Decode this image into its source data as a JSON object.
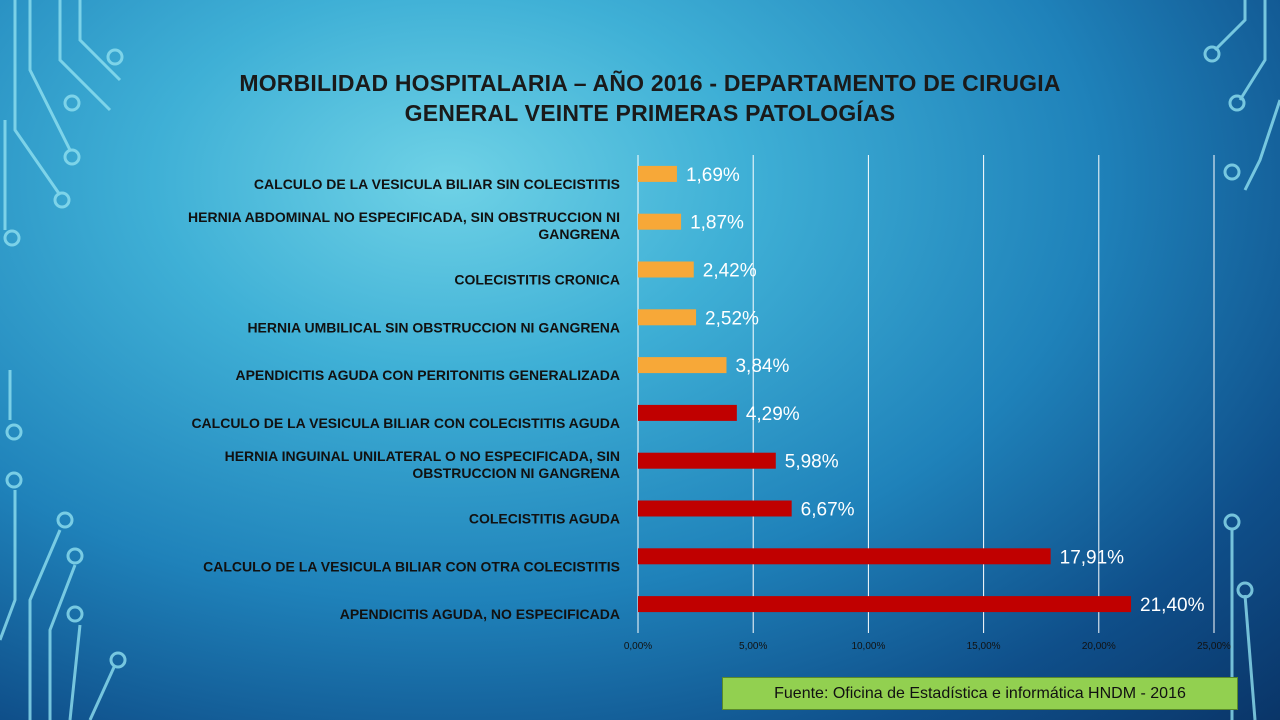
{
  "title": {
    "line1": "MORBILIDAD HOSPITALARIA – AÑO 2016 -  DEPARTAMENTO DE CIRUGIA",
    "line2": "GENERAL VEINTE PRIMERAS PATOLOGÍAS"
  },
  "source_note": "Fuente: Oficina de Estadística e informática HNDM - 2016",
  "colors": {
    "orange": "#f7a838",
    "red": "#c00000",
    "gridline": "#ffffff"
  },
  "chart_data": {
    "type": "bar",
    "orientation": "horizontal",
    "xlim": [
      0,
      25
    ],
    "x_ticks": [
      "0,00%",
      "5,00%",
      "10,00%",
      "15,00%",
      "20,00%",
      "25,00%"
    ],
    "grid": true,
    "categories": [
      [
        "CALCULO DE LA VESICULA BILIAR SIN COLECISTITIS"
      ],
      [
        "HERNIA ABDOMINAL NO ESPECIFICADA, SIN OBSTRUCCION NI",
        "GANGRENA"
      ],
      [
        "COLECISTITIS CRONICA"
      ],
      [
        "HERNIA UMBILICAL SIN OBSTRUCCION NI GANGRENA"
      ],
      [
        "APENDICITIS AGUDA CON PERITONITIS GENERALIZADA"
      ],
      [
        "CALCULO DE LA VESICULA BILIAR CON COLECISTITIS AGUDA"
      ],
      [
        "HERNIA INGUINAL UNILATERAL O NO ESPECIFICADA, SIN",
        "OBSTRUCCION NI GANGRENA"
      ],
      [
        "COLECISTITIS AGUDA"
      ],
      [
        "CALCULO DE LA VESICULA BILIAR CON OTRA COLECISTITIS"
      ],
      [
        "APENDICITIS AGUDA, NO ESPECIFICADA"
      ]
    ],
    "values": [
      1.69,
      1.87,
      2.42,
      2.52,
      3.84,
      4.29,
      5.98,
      6.67,
      17.91,
      21.4
    ],
    "value_labels": [
      "1,69%",
      "1,87%",
      "2,42%",
      "2,52%",
      "3,84%",
      "4,29%",
      "5,98%",
      "6,67%",
      "17,91%",
      "21,40%"
    ],
    "bar_colors": [
      "orange",
      "orange",
      "orange",
      "orange",
      "orange",
      "red",
      "red",
      "red",
      "red",
      "red"
    ]
  }
}
